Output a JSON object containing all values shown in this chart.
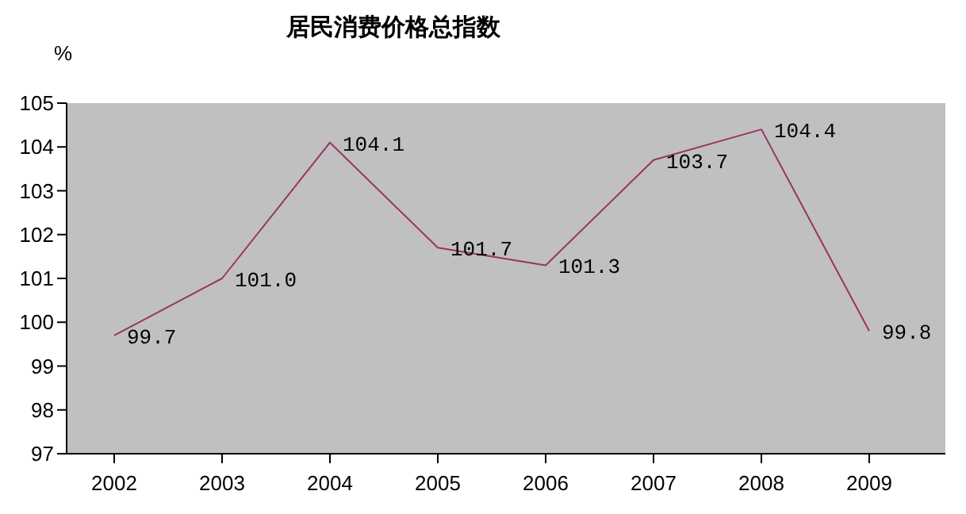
{
  "chart_data": {
    "type": "line",
    "title": "居民消费价格总指数",
    "ylabel": "%",
    "categories": [
      "2002",
      "2003",
      "2004",
      "2005",
      "2006",
      "2007",
      "2008",
      "2009"
    ],
    "series": [
      {
        "color": "#993366",
        "values": [
          99.7,
          101.0,
          104.1,
          101.7,
          101.3,
          103.7,
          104.4,
          99.8
        ]
      }
    ],
    "value_labels": [
      "99.7",
      "101.0",
      "104.1",
      "101.7",
      "101.3",
      "103.7",
      "104.4",
      "99.8"
    ],
    "ylim": [
      97,
      105
    ],
    "yticks": [
      97,
      98,
      99,
      100,
      101,
      102,
      103,
      104,
      105
    ],
    "grid": false,
    "legend": false,
    "marker": "none",
    "line_style": "solid"
  }
}
